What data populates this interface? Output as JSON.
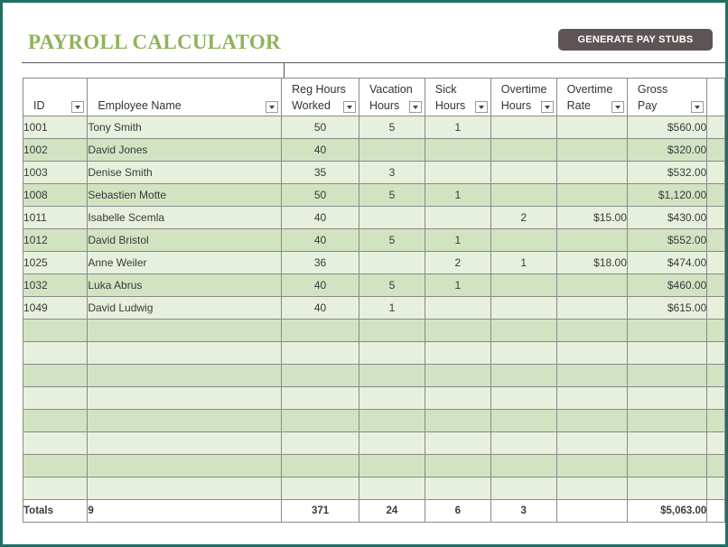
{
  "title": "PAYROLL CALCULATOR",
  "generate_button": "GENERATE  PAY STUBS",
  "columns": [
    {
      "line1": "",
      "line2": "ID"
    },
    {
      "line1": "",
      "line2": "Employee Name"
    },
    {
      "line1": "Reg Hours",
      "line2": "Worked"
    },
    {
      "line1": "Vacation",
      "line2": "Hours"
    },
    {
      "line1": "Sick",
      "line2": "Hours"
    },
    {
      "line1": "Overtime",
      "line2": "Hours"
    },
    {
      "line1": "Overtime",
      "line2": "Rate"
    },
    {
      "line1": "Gross",
      "line2": "Pay"
    }
  ],
  "rows": [
    [
      "1001",
      "Tony Smith",
      "50",
      "5",
      "1",
      "",
      "",
      "$560.00"
    ],
    [
      "1002",
      "David Jones",
      "40",
      "",
      "",
      "",
      "",
      "$320.00"
    ],
    [
      "1003",
      "Denise Smith",
      "35",
      "3",
      "",
      "",
      "",
      "$532.00"
    ],
    [
      "1008",
      "Sebastien Motte",
      "50",
      "5",
      "1",
      "",
      "",
      "$1,120.00"
    ],
    [
      "1011",
      "Isabelle Scemla",
      "40",
      "",
      "",
      "2",
      "$15.00",
      "$430.00"
    ],
    [
      "1012",
      "David Bristol",
      "40",
      "5",
      "1",
      "",
      "",
      "$552.00"
    ],
    [
      "1025",
      "Anne Weiler",
      "36",
      "",
      "2",
      "1",
      "$18.00",
      "$474.00"
    ],
    [
      "1032",
      "Luka Abrus",
      "40",
      "5",
      "1",
      "",
      "",
      "$460.00"
    ],
    [
      "1049",
      "David Ludwig",
      "40",
      "1",
      "",
      "",
      "",
      "$615.00"
    ],
    [
      "",
      "",
      "",
      "",
      "",
      "",
      "",
      ""
    ],
    [
      "",
      "",
      "",
      "",
      "",
      "",
      "",
      ""
    ],
    [
      "",
      "",
      "",
      "",
      "",
      "",
      "",
      ""
    ],
    [
      "",
      "",
      "",
      "",
      "",
      "",
      "",
      ""
    ],
    [
      "",
      "",
      "",
      "",
      "",
      "",
      "",
      ""
    ],
    [
      "",
      "",
      "",
      "",
      "",
      "",
      "",
      ""
    ],
    [
      "",
      "",
      "",
      "",
      "",
      "",
      "",
      ""
    ],
    [
      "",
      "",
      "",
      "",
      "",
      "",
      "",
      ""
    ]
  ],
  "totals": [
    "Totals",
    "9",
    "371",
    "24",
    "6",
    "3",
    "",
    "$5,063.00"
  ]
}
